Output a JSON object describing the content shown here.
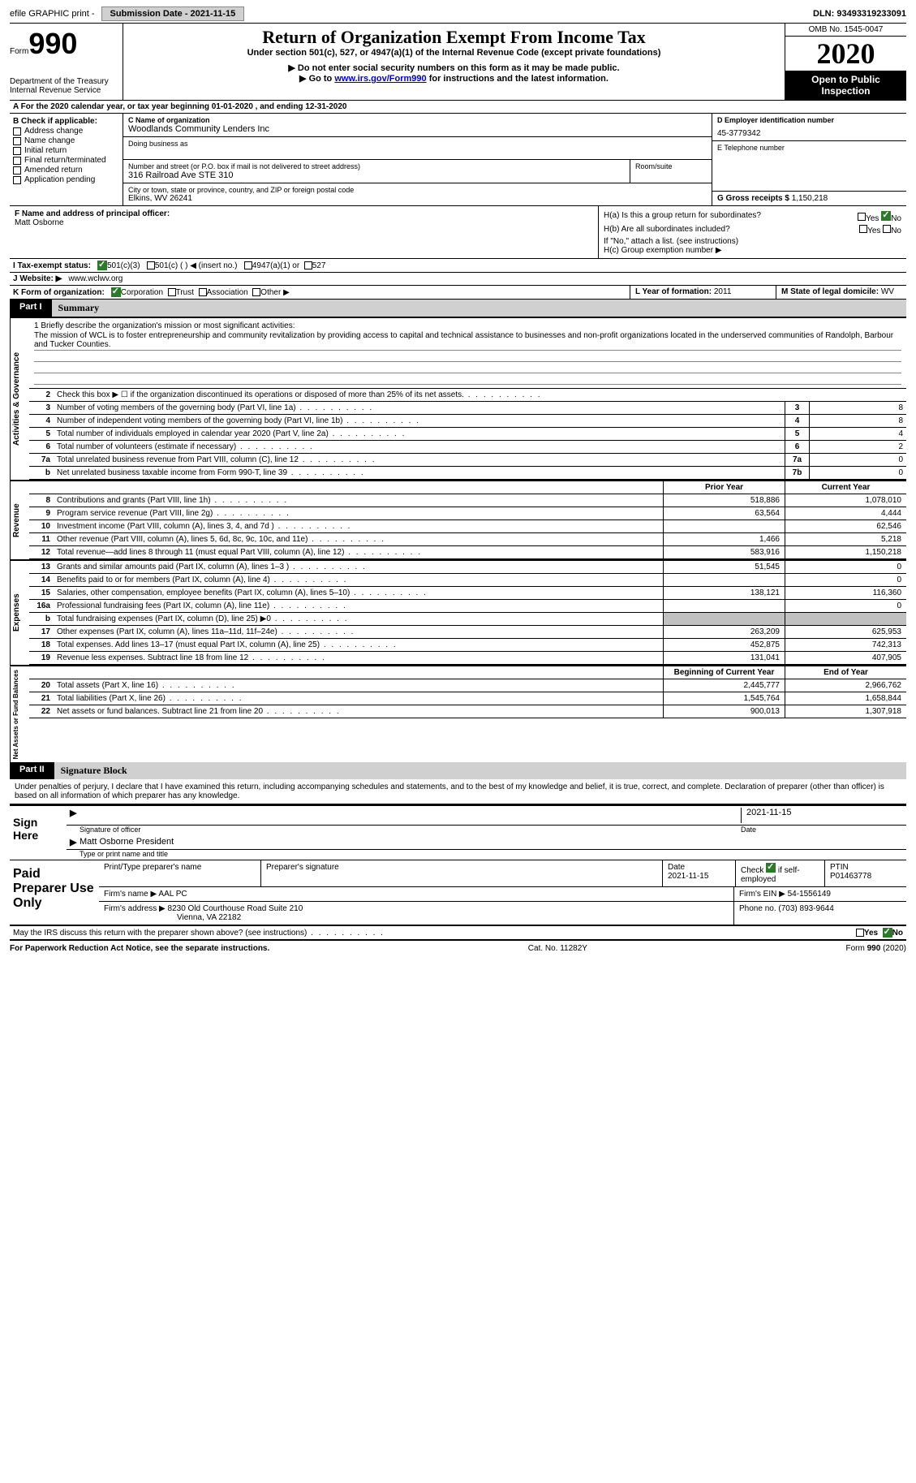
{
  "top": {
    "efile": "efile GRAPHIC print - ",
    "submission_label": "Submission Date - 2021-11-15",
    "dln_label": "DLN: 93493319233091"
  },
  "header": {
    "form_word": "Form",
    "form_no": "990",
    "dept1": "Department of the Treasury",
    "dept2": "Internal Revenue Service",
    "title": "Return of Organization Exempt From Income Tax",
    "sub": "Under section 501(c), 527, or 4947(a)(1) of the Internal Revenue Code (except private foundations)",
    "inst1": "▶ Do not enter social security numbers on this form as it may be made public.",
    "inst2a": "▶ Go to ",
    "inst2_link": "www.irs.gov/Form990",
    "inst2b": " for instructions and the latest information.",
    "omb": "OMB No. 1545-0047",
    "year": "2020",
    "inspection": "Open to Public Inspection"
  },
  "row_a": "A For the 2020 calendar year, or tax year beginning 01-01-2020    , and ending 12-31-2020",
  "col_b": {
    "title": "B Check if applicable:",
    "items": [
      "Address change",
      "Name change",
      "Initial return",
      "Final return/terminated",
      "Amended return",
      "Application pending"
    ]
  },
  "col_c": {
    "name_label": "C Name of organization",
    "name": "Woodlands Community Lenders Inc",
    "dba_label": "Doing business as",
    "addr_label": "Number and street (or P.O. box if mail is not delivered to street address)",
    "room_label": "Room/suite",
    "addr": "316 Railroad Ave STE 310",
    "city_label": "City or town, state or province, country, and ZIP or foreign postal code",
    "city": "Elkins, WV   26241"
  },
  "col_d": {
    "label": "D Employer identification number",
    "val": "45-3779342",
    "e_label": "E Telephone number",
    "g_label": "G Gross receipts $ ",
    "g_val": "1,150,218"
  },
  "f": {
    "label": "F  Name and address of principal officer:",
    "name": "Matt Osborne"
  },
  "h": {
    "a": "H(a)  Is this a group return for subordinates?",
    "b": "H(b)  Are all subordinates included?",
    "note": "If \"No,\" attach a list. (see instructions)",
    "c": "H(c)  Group exemption number ▶",
    "yes": "Yes",
    "no": "No"
  },
  "i": {
    "label": "I    Tax-exempt status:",
    "o1": "501(c)(3)",
    "o2": "501(c) (  )  ◀ (insert no.)",
    "o3": "4947(a)(1) or",
    "o4": "527"
  },
  "j": {
    "label": "J   Website: ▶",
    "val": "  www.wclwv.org"
  },
  "k": {
    "label": "K Form of organization:",
    "o1": "Corporation",
    "o2": "Trust",
    "o3": "Association",
    "o4": "Other ▶"
  },
  "l": {
    "label": "L Year of formation: ",
    "val": "2011"
  },
  "m": {
    "label": "M State of legal domicile: ",
    "val": "WV"
  },
  "part1": {
    "tab": "Part I",
    "title": "Summary"
  },
  "mission": {
    "q1": "1  Briefly describe the organization's mission or most significant activities:",
    "text": "The mission of WCL is to foster entrepreneurship and community revitalization by providing access to capital and technical assistance to businesses and non-profit organizations located in the underserved communities of Randolph, Barbour and Tucker Counties."
  },
  "gov_rows": [
    {
      "n": "2",
      "desc": "Check this box ▶ ☐  if the organization discontinued its operations or disposed of more than 25% of its net assets.",
      "box": "",
      "val": ""
    },
    {
      "n": "3",
      "desc": "Number of voting members of the governing body (Part VI, line 1a)",
      "box": "3",
      "val": "8"
    },
    {
      "n": "4",
      "desc": "Number of independent voting members of the governing body (Part VI, line 1b)",
      "box": "4",
      "val": "8"
    },
    {
      "n": "5",
      "desc": "Total number of individuals employed in calendar year 2020 (Part V, line 2a)",
      "box": "5",
      "val": "4"
    },
    {
      "n": "6",
      "desc": "Total number of volunteers (estimate if necessary)",
      "box": "6",
      "val": "2"
    },
    {
      "n": "7a",
      "desc": "Total unrelated business revenue from Part VIII, column (C), line 12",
      "box": "7a",
      "val": "0"
    },
    {
      "n": "b",
      "desc": "Net unrelated business taxable income from Form 990-T, line 39",
      "box": "7b",
      "val": "0"
    }
  ],
  "fin_header": {
    "prior": "Prior Year",
    "current": "Current Year"
  },
  "revenue_rows": [
    {
      "n": "8",
      "desc": "Contributions and grants (Part VIII, line 1h)",
      "p": "518,886",
      "c": "1,078,010"
    },
    {
      "n": "9",
      "desc": "Program service revenue (Part VIII, line 2g)",
      "p": "63,564",
      "c": "4,444"
    },
    {
      "n": "10",
      "desc": "Investment income (Part VIII, column (A), lines 3, 4, and 7d )",
      "p": "",
      "c": "62,546"
    },
    {
      "n": "11",
      "desc": "Other revenue (Part VIII, column (A), lines 5, 6d, 8c, 9c, 10c, and 11e)",
      "p": "1,466",
      "c": "5,218"
    },
    {
      "n": "12",
      "desc": "Total revenue—add lines 8 through 11 (must equal Part VIII, column (A), line 12)",
      "p": "583,916",
      "c": "1,150,218"
    }
  ],
  "expense_rows": [
    {
      "n": "13",
      "desc": "Grants and similar amounts paid (Part IX, column (A), lines 1–3 )",
      "p": "51,545",
      "c": "0"
    },
    {
      "n": "14",
      "desc": "Benefits paid to or for members (Part IX, column (A), line 4)",
      "p": "",
      "c": "0"
    },
    {
      "n": "15",
      "desc": "Salaries, other compensation, employee benefits (Part IX, column (A), lines 5–10)",
      "p": "138,121",
      "c": "116,360"
    },
    {
      "n": "16a",
      "desc": "Professional fundraising fees (Part IX, column (A), line 11e)",
      "p": "",
      "c": "0"
    },
    {
      "n": "b",
      "desc": "Total fundraising expenses (Part IX, column (D), line 25) ▶0",
      "p": "gray",
      "c": "gray"
    },
    {
      "n": "17",
      "desc": "Other expenses (Part IX, column (A), lines 11a–11d, 11f–24e)",
      "p": "263,209",
      "c": "625,953"
    },
    {
      "n": "18",
      "desc": "Total expenses. Add lines 13–17 (must equal Part IX, column (A), line 25)",
      "p": "452,875",
      "c": "742,313"
    },
    {
      "n": "19",
      "desc": "Revenue less expenses. Subtract line 18 from line 12",
      "p": "131,041",
      "c": "407,905"
    }
  ],
  "na_header": {
    "begin": "Beginning of Current Year",
    "end": "End of Year"
  },
  "na_rows": [
    {
      "n": "20",
      "desc": "Total assets (Part X, line 16)",
      "p": "2,445,777",
      "c": "2,966,762"
    },
    {
      "n": "21",
      "desc": "Total liabilities (Part X, line 26)",
      "p": "1,545,764",
      "c": "1,658,844"
    },
    {
      "n": "22",
      "desc": "Net assets or fund balances. Subtract line 21 from line 20",
      "p": "900,013",
      "c": "1,307,918"
    }
  ],
  "part2": {
    "tab": "Part II",
    "title": "Signature Block"
  },
  "sig": {
    "decl": "Under penalties of perjury, I declare that I have examined this return, including accompanying schedules and statements, and to the best of my knowledge and belief, it is true, correct, and complete. Declaration of preparer (other than officer) is based on all information of which preparer has any knowledge.",
    "sign_here": "Sign Here",
    "sig_officer": "Signature of officer",
    "date": "Date",
    "date_val": "2021-11-15",
    "name_title": "Matt Osborne  President",
    "type_label": "Type or print name and title"
  },
  "prep": {
    "title": "Paid Preparer Use Only",
    "h1": "Print/Type preparer's name",
    "h2": "Preparer's signature",
    "h3": "Date",
    "h3v": "2021-11-15",
    "h4": "Check ☑ if self-employed",
    "h5": "PTIN",
    "h5v": "P01463778",
    "firm_name_l": "Firm's name    ▶",
    "firm_name": "AAL PC",
    "firm_ein_l": "Firm's EIN ▶",
    "firm_ein": "54-1556149",
    "firm_addr_l": "Firm's address ▶",
    "firm_addr1": "8230 Old Courthouse Road Suite 210",
    "firm_addr2": "Vienna, VA   22182",
    "phone_l": "Phone no.",
    "phone": "(703) 893-9644"
  },
  "discuss": "May the IRS discuss this return with the preparer shown above? (see instructions)",
  "footer": {
    "left": "For Paperwork Reduction Act Notice, see the separate instructions.",
    "mid": "Cat. No. 11282Y",
    "right": "Form 990 (2020)"
  },
  "vert": {
    "gov": "Activities & Governance",
    "rev": "Revenue",
    "exp": "Expenses",
    "na": "Net Assets or Fund Balances"
  }
}
